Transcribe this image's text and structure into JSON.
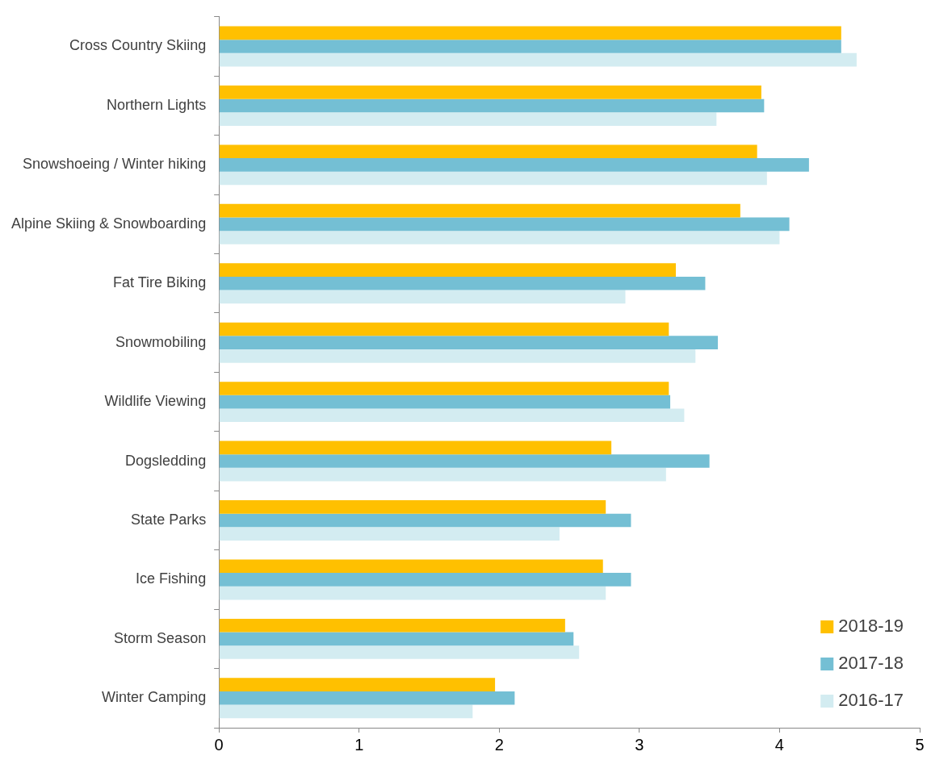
{
  "chart_data": {
    "type": "bar",
    "orientation": "horizontal",
    "categories": [
      "Cross Country Skiing",
      "Northern Lights",
      "Snowshoeing / Winter hiking",
      "Alpine Skiing & Snowboarding",
      "Fat Tire Biking",
      "Snowmobiling",
      "Wildlife Viewing",
      "Dogsledding",
      "State Parks",
      "Ice Fishing",
      "Storm Season",
      "Winter Camping"
    ],
    "series": [
      {
        "name": "2018-19",
        "color": "#ffc000",
        "values": [
          4.44,
          3.87,
          3.84,
          3.72,
          3.26,
          3.21,
          3.21,
          2.8,
          2.76,
          2.74,
          2.47,
          1.97
        ]
      },
      {
        "name": "2017-18",
        "color": "#74bfd4",
        "values": [
          4.44,
          3.89,
          4.21,
          4.07,
          3.47,
          3.56,
          3.22,
          3.5,
          2.94,
          2.94,
          2.53,
          2.11
        ]
      },
      {
        "name": "2016-17",
        "color": "#d3ecf1",
        "values": [
          4.55,
          3.55,
          3.91,
          4.0,
          2.9,
          3.4,
          3.32,
          3.19,
          2.43,
          2.76,
          2.57,
          1.81
        ]
      }
    ],
    "xlim": [
      0,
      5
    ],
    "xticks": [
      0,
      1,
      2,
      3,
      4,
      5
    ],
    "grid": false,
    "legend": "bottom right"
  }
}
